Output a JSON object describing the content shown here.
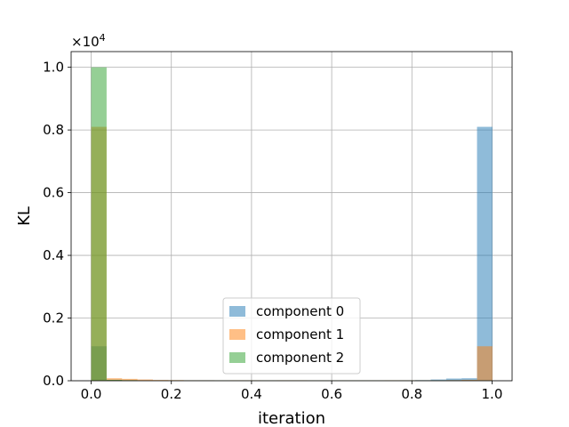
{
  "chart_data": {
    "type": "bar",
    "xlabel": "iteration",
    "ylabel": "KL",
    "xlim": [
      -0.05,
      1.05
    ],
    "ylim": [
      0,
      10500
    ],
    "xticks": [
      0.0,
      0.2,
      0.4,
      0.6,
      0.8,
      1.0
    ],
    "xtick_labels": [
      "0.0",
      "0.2",
      "0.4",
      "0.6",
      "0.8",
      "1.0"
    ],
    "yticks": [
      0,
      2000,
      4000,
      6000,
      8000,
      10000
    ],
    "ytick_labels": [
      "0.0",
      "0.2",
      "0.4",
      "0.6",
      "0.8",
      "1.0"
    ],
    "y_scale_label": {
      "base": "×10",
      "exponent": "4"
    },
    "grid": true,
    "legend_position": "lower-center",
    "bin_edges": [
      0.0,
      0.0385,
      0.077,
      0.1155,
      0.154,
      0.1925,
      0.231,
      0.2695,
      0.308,
      0.3465,
      0.385,
      0.4235,
      0.462,
      0.5005,
      0.539,
      0.5775,
      0.616,
      0.6545,
      0.693,
      0.7315,
      0.77,
      0.8085,
      0.847,
      0.8855,
      0.924,
      0.9625,
      1.001
    ],
    "series": [
      {
        "name": "component 0",
        "color": "#1f77b4",
        "values": [
          1100,
          30,
          15,
          10,
          10,
          10,
          15,
          15,
          10,
          10,
          10,
          10,
          10,
          10,
          10,
          10,
          10,
          10,
          10,
          10,
          15,
          20,
          40,
          70,
          80,
          8100
        ]
      },
      {
        "name": "component 1",
        "color": "#ff7f0e",
        "values": [
          8100,
          80,
          60,
          40,
          25,
          20,
          15,
          15,
          10,
          15,
          15,
          10,
          15,
          15,
          10,
          10,
          10,
          10,
          10,
          15,
          15,
          15,
          15,
          20,
          30,
          1100
        ]
      },
      {
        "name": "component 2",
        "color": "#2ca02c",
        "values": [
          10000,
          30,
          20,
          10,
          10,
          10,
          10,
          10,
          10,
          10,
          10,
          10,
          10,
          10,
          10,
          10,
          10,
          10,
          10,
          10,
          10,
          10,
          10,
          10,
          10,
          10
        ]
      }
    ]
  }
}
